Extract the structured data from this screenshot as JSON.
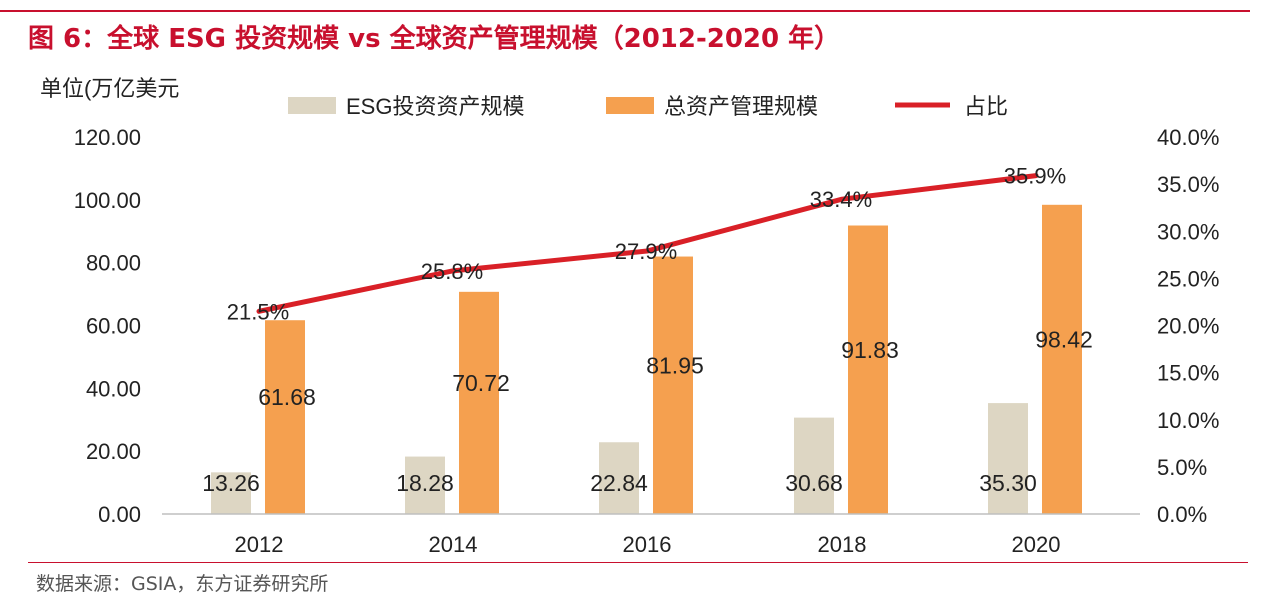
{
  "figure": {
    "title": "图 6：全球 ESG 投资规模 vs 全球资产管理规模（2012-2020 年）",
    "source": "数据来源：GSIA，东方证券研究所"
  },
  "colors": {
    "title_red": "#c8102e",
    "esg_bar": "#ddd6c3",
    "aum_bar": "#f5a04f",
    "ratio_line": "#d92027"
  },
  "chart_data": {
    "type": "bar",
    "title": "图 6：全球 ESG 投资规模 vs 全球资产管理规模（2012-2020 年）",
    "unit_label": "单位(万亿美元",
    "categories": [
      "2012",
      "2014",
      "2016",
      "2018",
      "2020"
    ],
    "series": [
      {
        "name": "ESG投资资产规模",
        "type": "bar",
        "axis": "left",
        "values": [
          13.26,
          18.28,
          22.84,
          30.68,
          35.3
        ],
        "labels": [
          "13.26",
          "18.28",
          "22.84",
          "30.68",
          "35.30"
        ]
      },
      {
        "name": "总资产管理规模",
        "type": "bar",
        "axis": "left",
        "values": [
          61.68,
          70.72,
          81.95,
          91.83,
          98.42
        ],
        "labels": [
          "61.68",
          "70.72",
          "81.95",
          "91.83",
          "98.42"
        ]
      },
      {
        "name": "占比",
        "type": "line",
        "axis": "right",
        "values": [
          21.5,
          25.8,
          27.9,
          33.4,
          35.9
        ],
        "labels": [
          "21.5%",
          "25.8%",
          "27.9%",
          "33.4%",
          "35.9%"
        ]
      }
    ],
    "y_left": {
      "min": 0,
      "max": 120,
      "ticks": [
        "0.00",
        "20.00",
        "40.00",
        "60.00",
        "80.00",
        "100.00",
        "120.00"
      ]
    },
    "y_right": {
      "min": 0,
      "max": 40,
      "ticks": [
        "0.0%",
        "5.0%",
        "10.0%",
        "15.0%",
        "20.0%",
        "25.0%",
        "30.0%",
        "35.0%",
        "40.0%"
      ]
    },
    "legend_position": "top",
    "grid": false
  }
}
